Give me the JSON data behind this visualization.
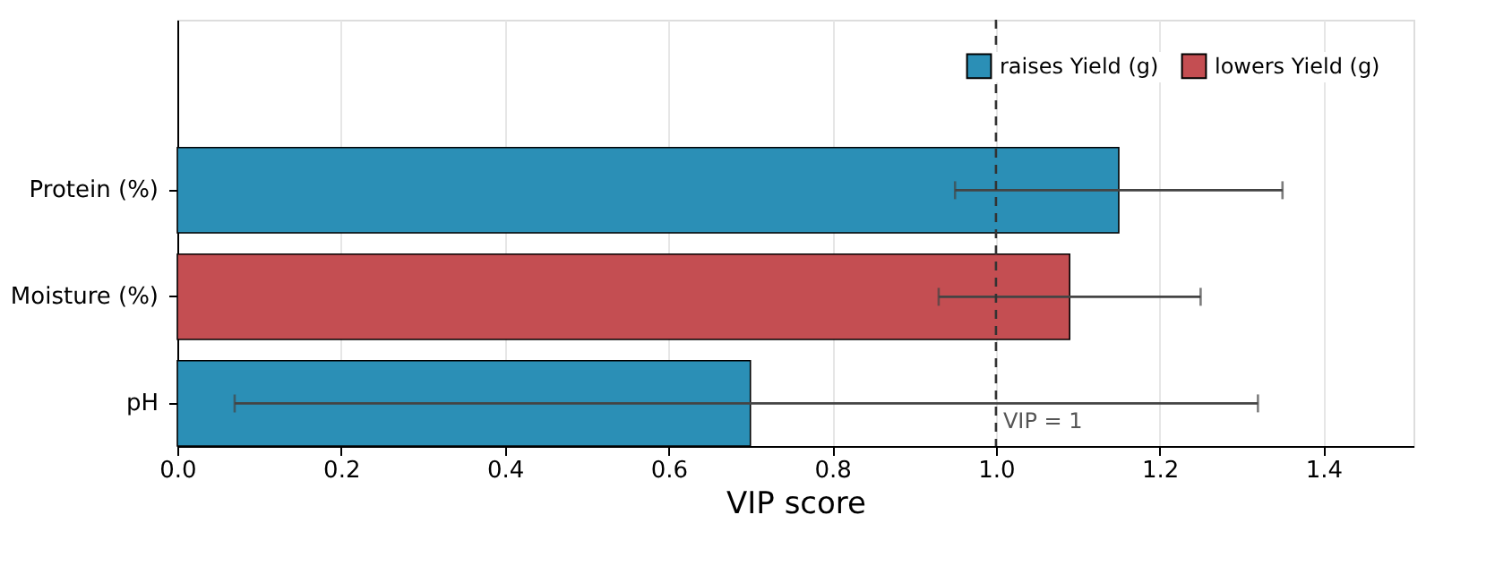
{
  "chart_data": {
    "type": "bar",
    "orientation": "horizontal",
    "stacked": true,
    "xlabel": "VIP score",
    "categories": [
      "Protein (%)",
      "Moisture (%)",
      "pH"
    ],
    "series": [
      {
        "name": "raises Yield (g)",
        "color": "#2b8fb6",
        "values": [
          1.15,
          null,
          0.7
        ],
        "errors": [
          [
            0.95,
            1.35
          ],
          null,
          [
            0.07,
            1.32
          ]
        ]
      },
      {
        "name": "lowers Yield (g)",
        "color": "#c44e52",
        "values": [
          null,
          1.09,
          null
        ],
        "errors": [
          null,
          [
            0.93,
            1.25
          ],
          null
        ]
      }
    ],
    "xlim": [
      0,
      1.51
    ],
    "xticks": [
      {
        "value": 0,
        "label": "0.0"
      },
      0.2,
      0.4,
      0.6,
      0.8,
      {
        "value": 1,
        "label": "1.0"
      },
      1.2,
      1.4
    ],
    "grid": "x",
    "legend": "top right",
    "ref_lines": [
      {
        "axis": "x",
        "value": 1.0,
        "label": "VIP = 1",
        "color": "#333333",
        "line_style": "dashed"
      }
    ]
  }
}
